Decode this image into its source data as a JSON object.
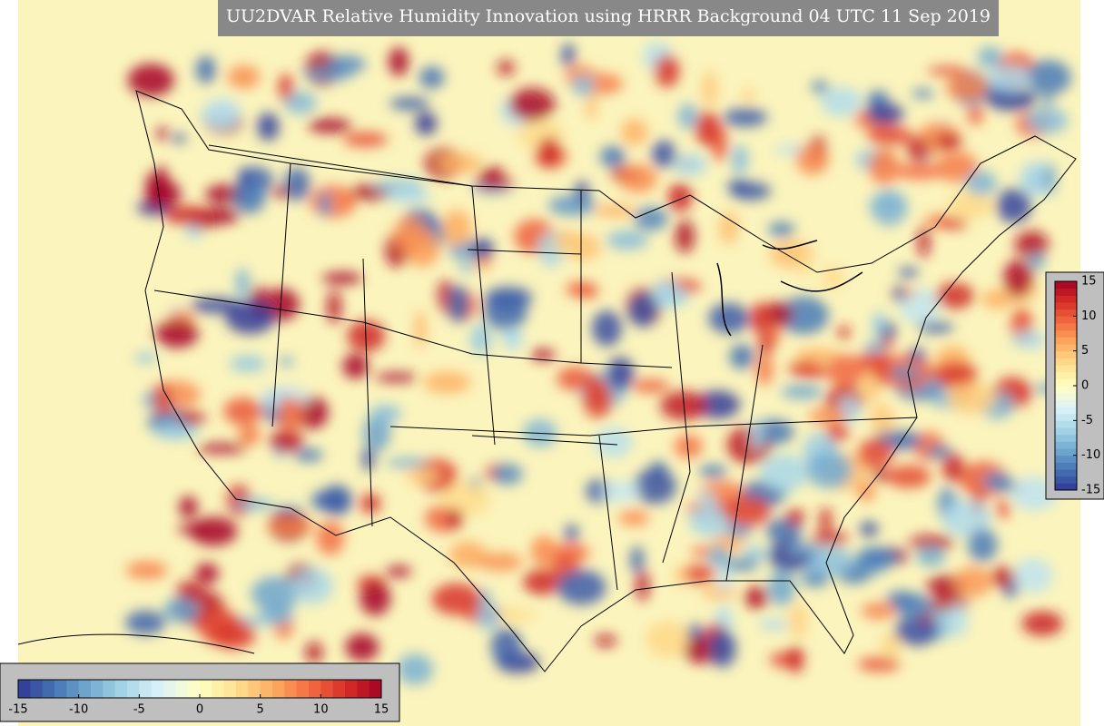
{
  "title": "UU2DVAR Relative Humidity Innovation using HRRR Background 04 UTC 11 Sep 2019",
  "colormap": [
    "#313695",
    "#4575b4",
    "#74add1",
    "#abd9e9",
    "#e0f3f8",
    "#ffffbf",
    "#fee090",
    "#fdae61",
    "#f46d43",
    "#d73027",
    "#a50026"
  ],
  "colorbars": [
    {
      "orientation": "vertical",
      "lim": [
        -15,
        15
      ],
      "ticks": [
        15,
        10,
        5,
        0,
        -5,
        -10,
        -15
      ]
    },
    {
      "orientation": "horizontal",
      "lim": [
        -15,
        15
      ],
      "ticks": [
        -15,
        -10,
        -5,
        0,
        5,
        10,
        15
      ]
    }
  ]
}
